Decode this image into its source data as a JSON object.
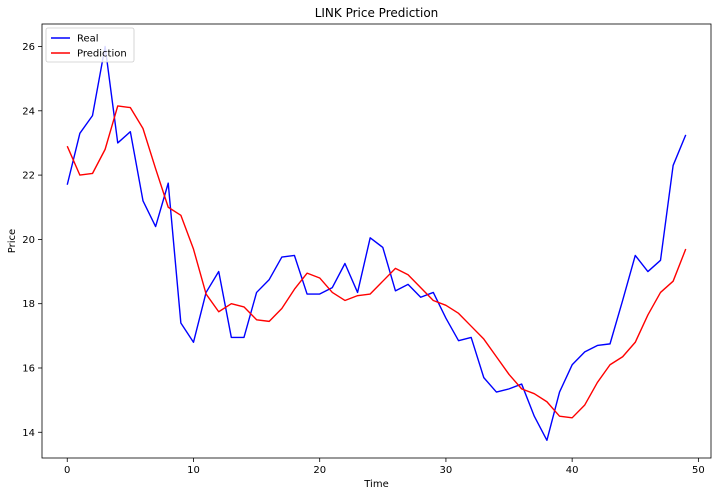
{
  "chart_data": {
    "type": "line",
    "title": "LINK Price Prediction",
    "xlabel": "Time",
    "ylabel": "Price",
    "xlim": [
      -2,
      51
    ],
    "ylim": [
      13.2,
      26.7
    ],
    "xticks": [
      0,
      10,
      20,
      30,
      40,
      50
    ],
    "yticks": [
      14,
      16,
      18,
      20,
      22,
      24,
      26
    ],
    "grid": false,
    "legend": "top-left",
    "series": [
      {
        "name": "Real",
        "color": "#0000ff",
        "values": [
          21.7,
          23.3,
          23.85,
          26.0,
          23.0,
          23.35,
          21.2,
          20.4,
          21.75,
          17.4,
          16.8,
          18.35,
          19.0,
          16.95,
          16.95,
          18.35,
          18.75,
          19.45,
          19.5,
          18.3,
          18.3,
          18.5,
          19.25,
          18.35,
          20.05,
          19.75,
          18.4,
          18.6,
          18.2,
          18.35,
          17.55,
          16.85,
          16.95,
          15.7,
          15.25,
          15.35,
          15.5,
          14.5,
          13.75,
          15.25,
          16.1,
          16.5,
          16.7,
          16.75,
          18.1,
          19.5,
          19.0,
          19.35,
          22.3,
          23.25
        ]
      },
      {
        "name": "Prediction",
        "color": "#ff0000",
        "values": [
          22.9,
          22.0,
          22.05,
          22.8,
          24.15,
          24.1,
          23.45,
          22.2,
          21.0,
          20.75,
          19.7,
          18.3,
          17.75,
          18.0,
          17.9,
          17.5,
          17.45,
          17.85,
          18.45,
          18.95,
          18.8,
          18.35,
          18.1,
          18.25,
          18.3,
          18.7,
          19.1,
          18.9,
          18.5,
          18.1,
          17.95,
          17.7,
          17.3,
          16.9,
          16.35,
          15.8,
          15.35,
          15.2,
          14.95,
          14.5,
          14.45,
          14.85,
          15.55,
          16.1,
          16.35,
          16.8,
          17.65,
          18.35,
          18.7,
          19.7
        ]
      }
    ]
  }
}
